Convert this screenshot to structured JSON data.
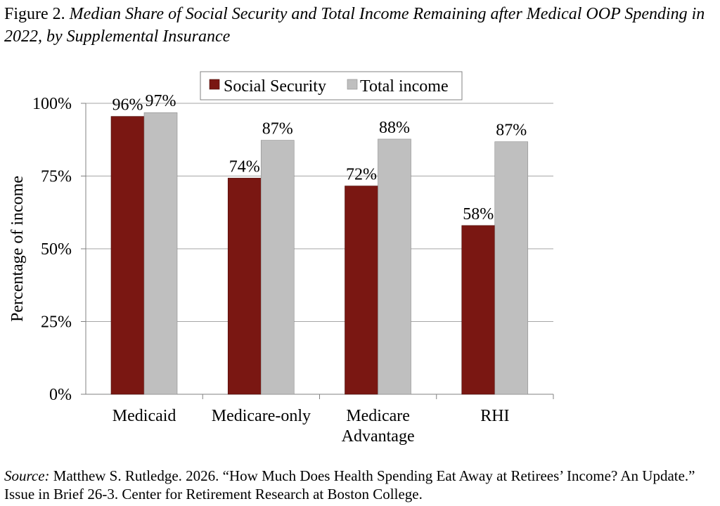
{
  "figure": {
    "label": "Figure 2.",
    "title": "Median Share of Social Security and Total Income Remaining after Medical OOP Spending in 2022, by Supplemental Insurance"
  },
  "source": {
    "label": "Source:",
    "text": "Matthew S. Rutledge. 2026. “How Much Does Health Spending Eat Away at Retirees’ Income? An Update.” Issue in Brief 26-3. Center for Retirement Research at Boston College."
  },
  "chart_data": {
    "type": "bar",
    "title": "",
    "xlabel": "",
    "ylabel": "Percentage of income",
    "categories": [
      "Medicaid",
      "Medicare-only",
      "Medicare Advantage",
      "RHI"
    ],
    "category_lines": [
      [
        "Medicaid"
      ],
      [
        "Medicare-only"
      ],
      [
        "Medicare",
        "Advantage"
      ],
      [
        "RHI"
      ]
    ],
    "series": [
      {
        "name": "Social Security",
        "values": [
          95.5,
          74.3,
          71.6,
          58.0
        ],
        "labels": [
          "96%",
          "74%",
          "72%",
          "58%"
        ],
        "color": "#7a1712"
      },
      {
        "name": "Total income",
        "values": [
          96.8,
          87.3,
          87.7,
          86.8
        ],
        "labels": [
          "97%",
          "87%",
          "88%",
          "87%"
        ],
        "color": "#bfbfbf"
      }
    ],
    "ylim": [
      0,
      100
    ],
    "yticks": [
      0,
      25,
      50,
      75,
      100
    ],
    "ytick_labels": [
      "0%",
      "25%",
      "50%",
      "75%",
      "100%"
    ],
    "grid": true,
    "legend": "top-center"
  }
}
